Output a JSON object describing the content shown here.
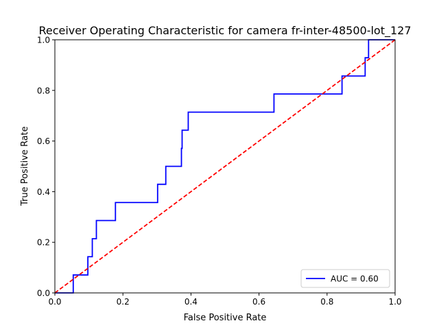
{
  "chart_data": {
    "type": "line",
    "title": "Receiver Operating Characteristic for camera fr-inter-48500-lot_127",
    "xlabel": "False Positive Rate",
    "ylabel": "True Positive Rate",
    "xlim": [
      0,
      1
    ],
    "ylim": [
      0,
      1
    ],
    "x_ticks": [
      "0.0",
      "0.2",
      "0.4",
      "0.6",
      "0.8",
      "1.0"
    ],
    "y_ticks": [
      "0.0",
      "0.2",
      "0.4",
      "0.6",
      "0.8",
      "1.0"
    ],
    "grid": false,
    "legend_position": "lower-right",
    "series": [
      {
        "name": "AUC = 0.60",
        "color": "#0000ff",
        "style": "solid",
        "x": [
          0.0,
          0.054,
          0.054,
          0.097,
          0.097,
          0.11,
          0.11,
          0.116,
          0.116,
          0.122,
          0.122,
          0.178,
          0.178,
          0.302,
          0.302,
          0.326,
          0.326,
          0.372,
          0.372,
          0.374,
          0.374,
          0.392,
          0.392,
          0.644,
          0.644,
          0.844,
          0.844,
          0.912,
          0.912,
          0.922,
          0.922,
          1.0
        ],
        "y": [
          0.0,
          0.0,
          0.071,
          0.071,
          0.143,
          0.143,
          0.214,
          0.214,
          0.214,
          0.214,
          0.286,
          0.286,
          0.357,
          0.357,
          0.429,
          0.429,
          0.5,
          0.5,
          0.571,
          0.571,
          0.643,
          0.643,
          0.714,
          0.714,
          0.786,
          0.786,
          0.857,
          0.857,
          0.929,
          0.929,
          1.0,
          1.0
        ]
      },
      {
        "name": "",
        "color": "#ff0000",
        "style": "dashed",
        "x": [
          0,
          1
        ],
        "y": [
          0,
          1
        ]
      }
    ]
  }
}
